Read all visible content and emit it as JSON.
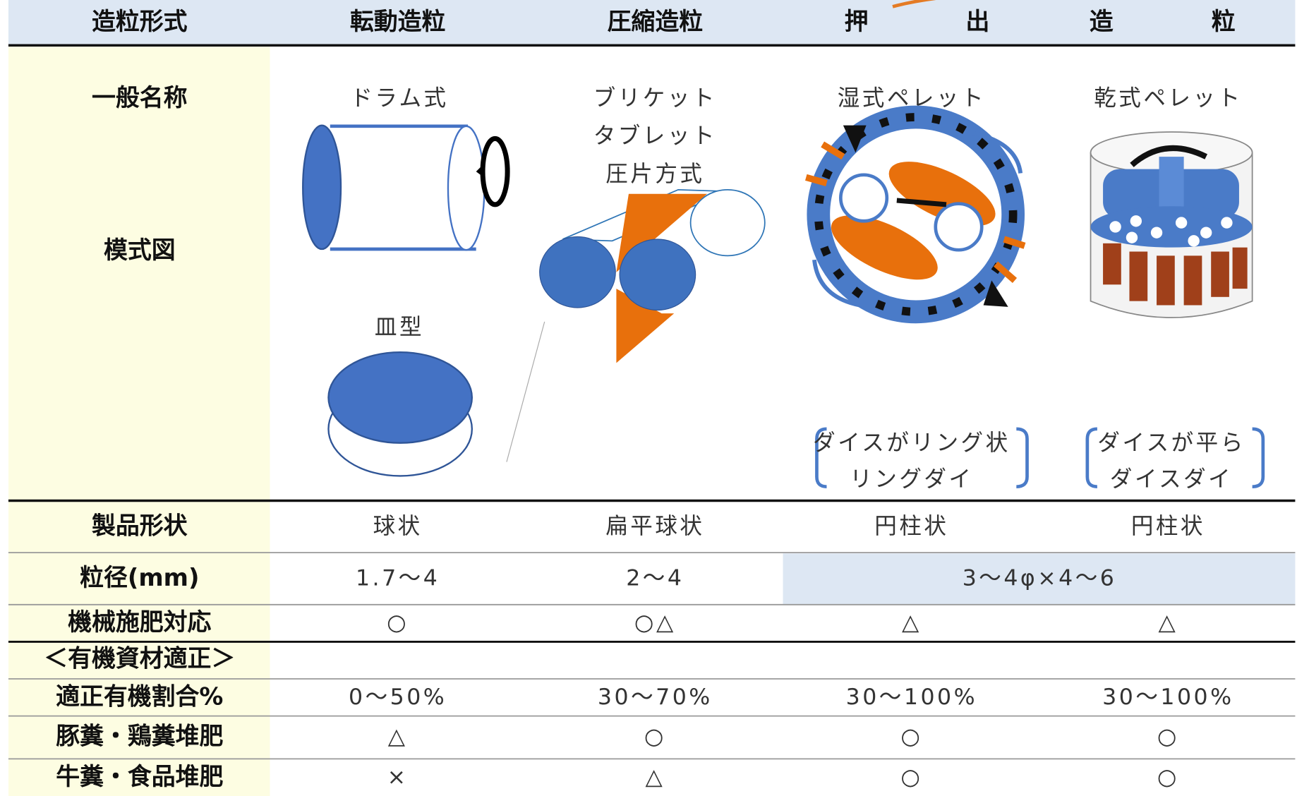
{
  "header": {
    "label": "造粒形式",
    "columns": [
      "転動造粒",
      "圧縮造粒"
    ],
    "extrusion": [
      "押",
      "出",
      "造",
      "粒"
    ]
  },
  "general_name": {
    "label": "一般名称",
    "drum": "ドラム式",
    "dish": "皿型",
    "compression": [
      "ブリケット",
      "タブレット",
      "圧片方式"
    ],
    "wet": "湿式ペレット",
    "dry": "乾式ペレット"
  },
  "diagram": {
    "label": "模式図",
    "wet_note": [
      "ダイスがリング状",
      "リングダイ"
    ],
    "dry_note": [
      "ダイスが平ら",
      "ダイスダイ"
    ]
  },
  "rows_top": [
    {
      "label": "製品形状",
      "cells": [
        "球状",
        "扁平球状",
        "円柱状",
        "円柱状"
      ]
    },
    {
      "label": "粒径(mm)",
      "cells": [
        "1.7～4",
        "2～4"
      ],
      "span_cell": "3～4φ×4～6"
    },
    {
      "label": "機械施肥対応",
      "cells": [
        "○",
        "○△",
        "△",
        "△"
      ]
    }
  ],
  "section": "＜有機資材適正＞",
  "rows_bottom": [
    {
      "label": "適正有機割合%",
      "cells": [
        "0～50%",
        "30～70%",
        "30～100%",
        "30～100%"
      ]
    },
    {
      "label": "豚糞・鶏糞堆肥",
      "cells": [
        "△",
        "○",
        "○",
        "○"
      ]
    },
    {
      "label": "牛糞・食品堆肥",
      "cells": [
        "×",
        "△",
        "○",
        "○"
      ]
    }
  ]
}
